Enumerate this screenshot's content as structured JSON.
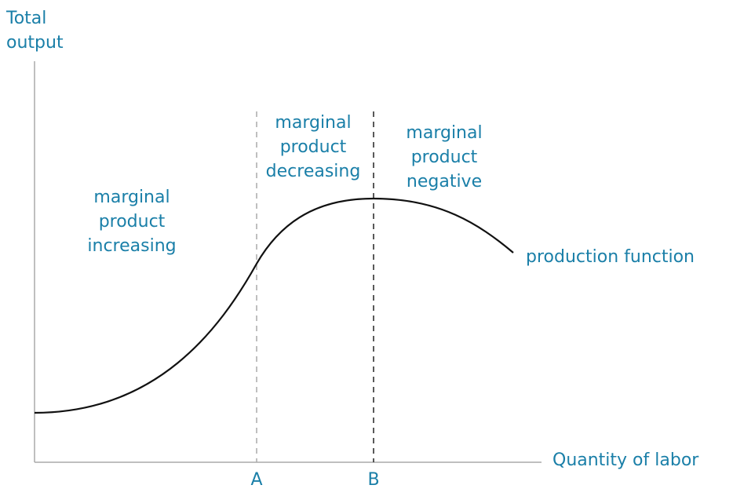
{
  "axes": {
    "y_label": "Total\noutput",
    "x_label": "Quantity of labor",
    "x_markers": [
      "A",
      "B"
    ]
  },
  "regions": {
    "increasing": "marginal\nproduct\nincreasing",
    "decreasing": "marginal\nproduct\ndecreasing",
    "negative": "marginal\nproduct\nnegative"
  },
  "curve": {
    "label": "production function"
  },
  "colors": {
    "text": "#1a7fa8",
    "axis": "#aaaaaa",
    "curve": "#111111",
    "line_a": "#aaaaaa",
    "line_b": "#222222"
  }
}
